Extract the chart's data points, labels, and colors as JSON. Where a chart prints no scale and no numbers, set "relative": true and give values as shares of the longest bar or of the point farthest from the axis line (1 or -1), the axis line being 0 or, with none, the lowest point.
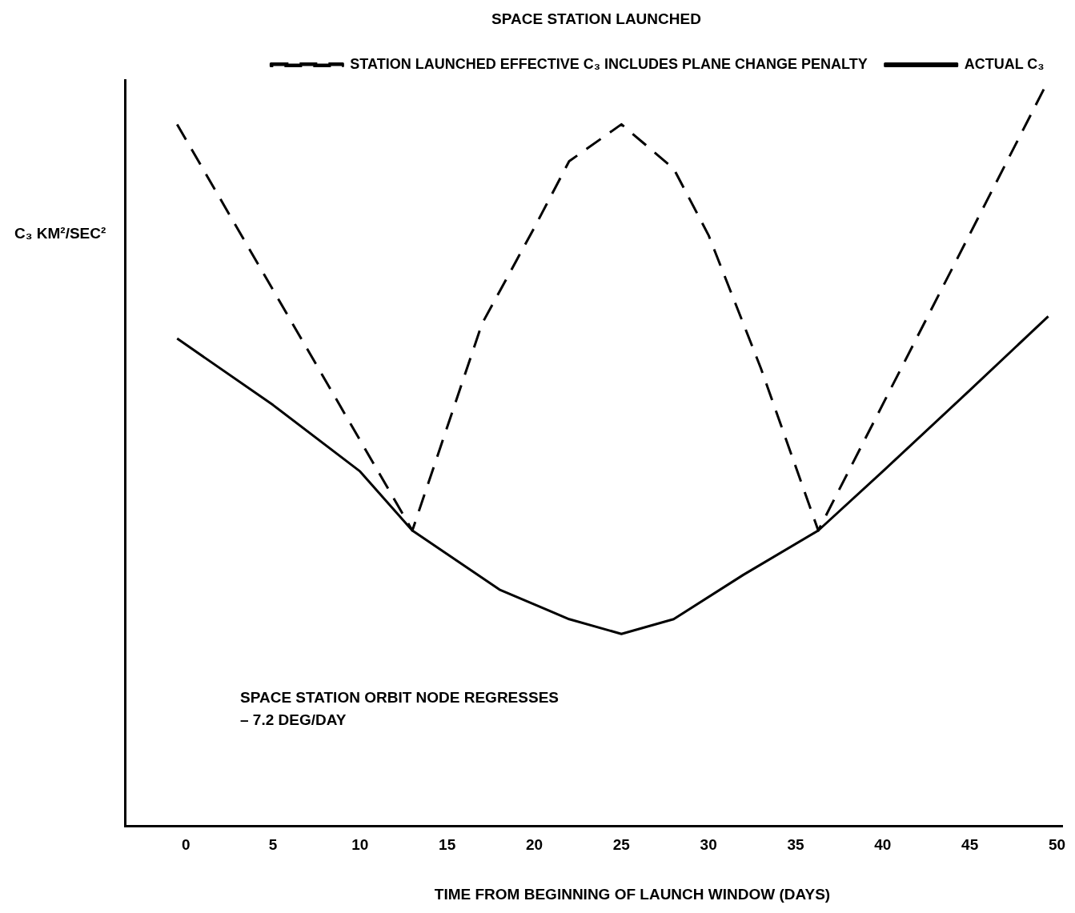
{
  "chart_data": {
    "type": "line",
    "title": "SPACE STATION LAUNCHED",
    "xlabel": "TIME FROM BEGINNING OF LAUNCH WINDOW (DAYS)",
    "ylabel": "C₃ KM²/SEC²",
    "relative": true,
    "xlim": [
      -3.5,
      50.3
    ],
    "xticks": [
      0,
      5,
      10,
      15,
      20,
      25,
      30,
      35,
      40,
      45,
      50
    ],
    "grid": false,
    "legend": "top right",
    "marker": "none",
    "annotations": [
      "SPACE STATION ORBIT NODE REGRESSES",
      "– 7.2 DEG/DAY"
    ],
    "series": [
      {
        "name": "STATION LAUNCHED EFFECTIVE C₃ INCLUDES PLANE CHANGE PENALTY",
        "color": "#000000",
        "line_style": "dashed",
        "x": [
          -0.5,
          13,
          17,
          20,
          22,
          25,
          28,
          30,
          33,
          36.3,
          49.3
        ],
        "values": [
          0.95,
          0.4,
          0.68,
          0.81,
          0.9,
          0.95,
          0.89,
          0.8,
          0.62,
          0.4,
          1
        ]
      },
      {
        "name": "ACTUAL C₃",
        "color": "#000000",
        "line_style": "solid",
        "x": [
          -0.5,
          5,
          10,
          13,
          18,
          22,
          25,
          28,
          32,
          36.3,
          40,
          45,
          49.5
        ],
        "values": [
          0.66,
          0.57,
          0.48,
          0.4,
          0.32,
          0.28,
          0.26,
          0.28,
          0.34,
          0.4,
          0.48,
          0.59,
          0.69
        ]
      }
    ]
  }
}
